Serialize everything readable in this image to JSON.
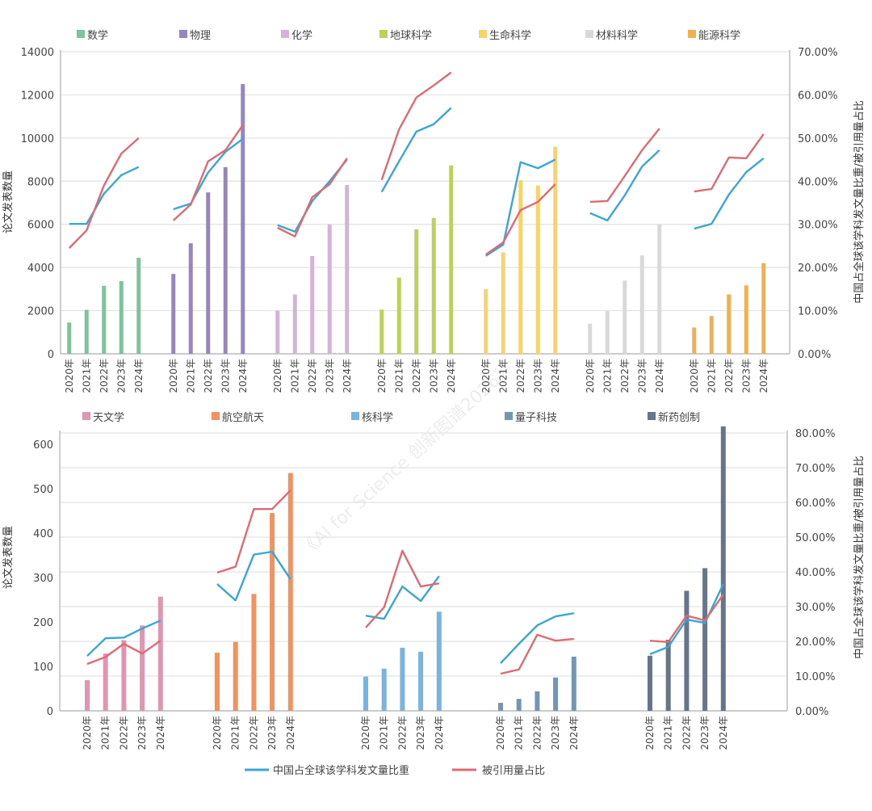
{
  "colors": {
    "share_line": "#3aa6d8",
    "citation_line": "#e06a72",
    "grid": "#e3e3e3",
    "axis": "#bdbdbd"
  },
  "watermark": "《AI for Science 创新图谱2026》",
  "line_legend": {
    "share": "中国占全球该学科发文量比重",
    "citation": "被引用量占比"
  },
  "chart_data": [
    {
      "type": "bar+line",
      "years": [
        "2020年",
        "2021年",
        "2022年",
        "2023年",
        "2024年"
      ],
      "ylabel": "论文发表数量",
      "y2label": "中国占全球该学科发文量比重/被引用量占比",
      "ylim": [
        0,
        14000
      ],
      "yticks": [
        "0",
        "2000",
        "4000",
        "6000",
        "8000",
        "10000",
        "12000",
        "14000"
      ],
      "y2lim": [
        0,
        70
      ],
      "y2ticks": [
        "0.00%",
        "10.00%",
        "20.00%",
        "30.00%",
        "40.00%",
        "50.00%",
        "60.00%",
        "70.00%"
      ],
      "grid": true,
      "legend": "top",
      "groups": [
        {
          "name": "数学",
          "color": "#7dc49c",
          "papers": [
            1450,
            2040,
            3150,
            3370,
            4450
          ],
          "share": [
            30.1,
            30.1,
            37.1,
            41.4,
            43.3
          ],
          "citation": [
            24.5,
            28.6,
            39.0,
            46.4,
            50.0
          ]
        },
        {
          "name": "物理",
          "color": "#9586bd",
          "papers": [
            3700,
            5120,
            7480,
            8650,
            12500
          ],
          "share": [
            33.5,
            34.8,
            42.0,
            46.8,
            49.8
          ],
          "citation": [
            30.9,
            34.6,
            44.6,
            47.2,
            53.0
          ]
        },
        {
          "name": "化学",
          "color": "#d4b3d8",
          "papers": [
            2000,
            2750,
            4530,
            6000,
            7820
          ],
          "share": [
            29.8,
            28.3,
            35.4,
            40.0,
            45.0
          ],
          "citation": [
            29.2,
            27.2,
            36.3,
            39.3,
            45.3
          ]
        },
        {
          "name": "地球科学",
          "color": "#bcd15a",
          "papers": [
            2050,
            3530,
            5770,
            6300,
            8730
          ],
          "share": [
            37.5,
            44.6,
            51.5,
            53.2,
            57.0
          ],
          "citation": [
            40.3,
            52.0,
            59.4,
            62.2,
            65.2
          ]
        },
        {
          "name": "生命科学",
          "color": "#f7d36a",
          "papers": [
            3000,
            4700,
            8050,
            7800,
            9600
          ],
          "share": [
            22.7,
            25.3,
            44.4,
            43.0,
            45.0
          ],
          "citation": [
            23.0,
            25.8,
            33.3,
            35.2,
            39.3
          ]
        },
        {
          "name": "材料科学",
          "color": "#d9d9d9",
          "papers": [
            1400,
            1980,
            3400,
            4560,
            6000
          ],
          "share": [
            32.6,
            30.9,
            36.7,
            43.4,
            47.2
          ],
          "citation": [
            35.2,
            35.4,
            41.2,
            47.2,
            52.2
          ]
        },
        {
          "name": "能源科学",
          "color": "#f2ae4f",
          "papers": [
            1220,
            1750,
            2750,
            3170,
            4200
          ],
          "share": [
            29.0,
            30.1,
            36.9,
            42.1,
            45.3
          ],
          "citation": [
            37.6,
            38.2,
            45.5,
            45.3,
            50.9
          ]
        }
      ]
    },
    {
      "type": "bar+line",
      "years": [
        "2020年",
        "2021年",
        "2022年",
        "2023年",
        "2024年"
      ],
      "ylabel": "论文发表数量",
      "y2label": "中国占全球该学科发文量比重/被引用量占比",
      "ylim": [
        0,
        627
      ],
      "yticks": [
        "0",
        "100",
        "200",
        "300",
        "400",
        "500",
        "600"
      ],
      "y2lim": [
        0,
        80
      ],
      "y2ticks": [
        "0.00%",
        "10.00%",
        "20.00%",
        "30.00%",
        "40.00%",
        "50.00%",
        "60.00%",
        "70.00%",
        "80.00%"
      ],
      "grid": true,
      "legend": "top",
      "groups": [
        {
          "name": "天文学",
          "color": "#e295b0",
          "papers": [
            69,
            129,
            159,
            192,
            257
          ],
          "share": [
            15.8,
            20.9,
            21.1,
            23.7,
            26.0
          ],
          "citation": [
            13.5,
            15.5,
            19.3,
            16.5,
            20.2
          ]
        },
        {
          "name": "航空航天",
          "color": "#ef9461",
          "papers": [
            131,
            155,
            263,
            445,
            535
          ],
          "share": [
            36.5,
            31.8,
            45.0,
            45.8,
            37.9
          ],
          "citation": [
            39.8,
            41.5,
            58.1,
            58.1,
            63.5
          ]
        },
        {
          "name": "核科学",
          "color": "#7ab3df",
          "papers": [
            77,
            95,
            142,
            133,
            223
          ],
          "share": [
            27.4,
            26.5,
            35.8,
            31.6,
            38.8
          ],
          "citation": [
            24.0,
            29.8,
            46.1,
            35.8,
            36.7
          ]
        },
        {
          "name": "量子科技",
          "color": "#7496b3",
          "papers": [
            18,
            27,
            44,
            75,
            122
          ],
          "share": [
            13.7,
            19.3,
            24.6,
            27.2,
            28.1
          ],
          "citation": [
            10.7,
            11.9,
            21.9,
            20.2,
            20.7
          ]
        },
        {
          "name": "新药创制",
          "color": "#667589",
          "papers": [
            124,
            160,
            270,
            321,
            640
          ],
          "share": [
            16.3,
            18.4,
            26.3,
            25.3,
            36.5
          ],
          "citation": [
            20.2,
            19.8,
            27.4,
            26.0,
            33.5
          ]
        }
      ]
    }
  ]
}
